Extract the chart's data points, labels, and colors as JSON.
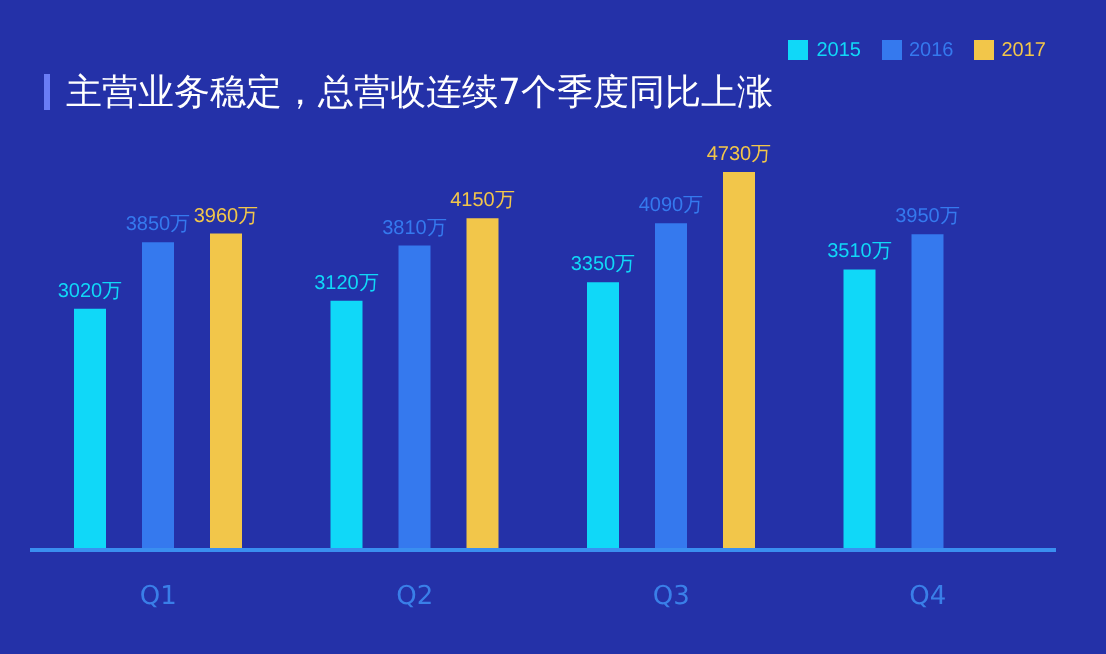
{
  "chart_data": {
    "type": "bar",
    "title": "主营业务稳定，总营收连续7个季度同比上涨",
    "categories": [
      "Q1",
      "Q2",
      "Q3",
      "Q4"
    ],
    "legend": "top right",
    "series": [
      {
        "name": "2015",
        "color": "#10d8f8",
        "values": [
          3020,
          3120,
          3350,
          3510
        ],
        "value_labels": [
          "3020万",
          "3120万",
          "3350万",
          "3510万"
        ]
      },
      {
        "name": "2016",
        "color": "#3579ee",
        "values": [
          3850,
          3810,
          4090,
          3950
        ],
        "value_labels": [
          "3850万",
          "3810万",
          "4090万",
          "3950万"
        ]
      },
      {
        "name": "2017",
        "color": "#f2c64a",
        "values": [
          3960,
          4150,
          4730,
          null
        ],
        "value_labels": [
          "3960万",
          "4150万",
          "4730万",
          null
        ]
      }
    ]
  }
}
